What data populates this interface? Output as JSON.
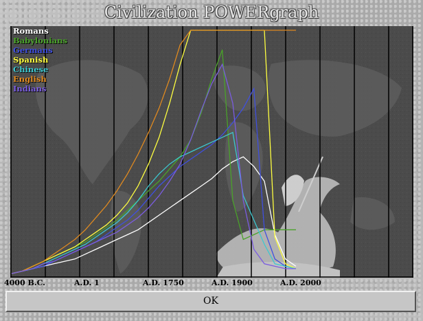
{
  "window": {
    "title": "Civilization POWERgraph",
    "ok_label": "OK"
  },
  "chart_data": {
    "type": "line",
    "x_ticks": [
      "4000 B.C.",
      "A.D. 1",
      "A.D. 1750",
      "A.D. 1900",
      "A.D. 2000"
    ],
    "ylim": [
      0,
      100
    ],
    "legend_placement": "top-left",
    "grid": true,
    "series": [
      {
        "name": "Romans",
        "color": "#ffffff",
        "values": [
          0,
          1,
          2,
          3,
          4,
          5,
          6,
          8,
          10,
          12,
          14,
          16,
          18,
          21,
          24,
          27,
          30,
          33,
          36,
          39,
          43,
          46,
          48,
          44,
          38,
          16,
          6,
          3
        ]
      },
      {
        "name": "Babylonians",
        "color": "#4aa22a",
        "values": [
          0,
          1,
          3,
          5,
          7,
          9,
          11,
          13,
          16,
          19,
          22,
          26,
          30,
          34,
          38,
          43,
          48,
          55,
          66,
          80,
          92,
          30,
          14,
          16,
          18,
          18,
          18,
          18
        ]
      },
      {
        "name": "Germans",
        "color": "#3f4fe0",
        "values": [
          0,
          1,
          2,
          3,
          5,
          7,
          9,
          11,
          13,
          16,
          19,
          22,
          26,
          31,
          36,
          40,
          44,
          47,
          50,
          53,
          57,
          62,
          68,
          76,
          18,
          6,
          3,
          2
        ]
      },
      {
        "name": "Spanish",
        "color": "#ffff40",
        "values": [
          0,
          1,
          3,
          5,
          7,
          9,
          11,
          14,
          17,
          20,
          24,
          29,
          36,
          45,
          56,
          70,
          86,
          100,
          100,
          100,
          100,
          100,
          100,
          100,
          100,
          15,
          4,
          2
        ]
      },
      {
        "name": "Chinese",
        "color": "#3cc8d0",
        "values": [
          0,
          1,
          2,
          4,
          6,
          8,
          10,
          12,
          15,
          18,
          21,
          25,
          30,
          36,
          41,
          45,
          48,
          50,
          52,
          54,
          56,
          58,
          32,
          22,
          12,
          4,
          3,
          2
        ]
      },
      {
        "name": "English",
        "color": "#e08a20",
        "values": [
          0,
          1,
          3,
          5,
          8,
          11,
          14,
          18,
          23,
          28,
          34,
          41,
          49,
          58,
          68,
          80,
          94,
          100,
          100,
          100,
          100,
          100,
          100,
          100,
          100,
          100,
          100,
          100
        ]
      },
      {
        "name": "Indians",
        "color": "#7a5ce0",
        "values": [
          0,
          1,
          2,
          4,
          5,
          7,
          9,
          11,
          13,
          15,
          17,
          20,
          23,
          27,
          32,
          38,
          45,
          55,
          67,
          78,
          86,
          70,
          30,
          10,
          4,
          3,
          2,
          2
        ]
      }
    ]
  }
}
